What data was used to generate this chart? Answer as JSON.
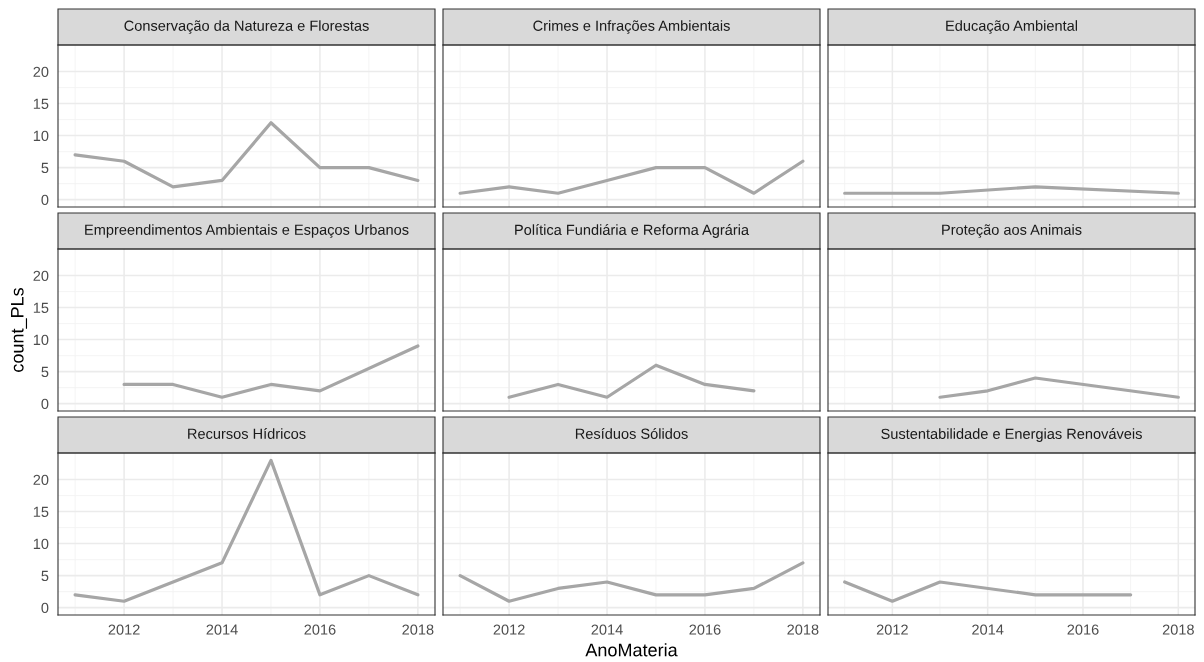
{
  "chart_data": [
    {
      "type": "line",
      "title": "Conservação da Natureza e Florestas",
      "x": [
        2011,
        2012,
        2013,
        2014,
        2015,
        2016,
        2017,
        2018
      ],
      "series": [
        {
          "color": "#a6a6a6",
          "values": [
            7,
            6,
            2,
            3,
            12,
            5,
            5,
            3
          ]
        }
      ],
      "xlim": [
        2010.65,
        2018.35
      ],
      "ylim": [
        -1.15,
        24.15
      ],
      "xticks": [
        2012,
        2014,
        2016,
        2018
      ],
      "yticks": [
        0,
        5,
        10,
        15,
        20
      ],
      "grid": true,
      "tick_labels": "y"
    },
    {
      "type": "line",
      "title": "Crimes e Infrações Ambientais",
      "x": [
        2011,
        2012,
        2013,
        2014,
        2015,
        2016,
        2017,
        2018
      ],
      "series": [
        {
          "color": "#a6a6a6",
          "values": [
            1,
            2,
            1,
            3,
            5,
            5,
            1,
            6
          ]
        }
      ],
      "xlim": [
        2010.65,
        2018.35
      ],
      "ylim": [
        -1.15,
        24.15
      ],
      "xticks": [
        2012,
        2014,
        2016,
        2018
      ],
      "yticks": [
        0,
        5,
        10,
        15,
        20
      ],
      "grid": true,
      "tick_labels": false
    },
    {
      "type": "line",
      "title": "Educação Ambiental",
      "x": [
        2011,
        2013,
        2015,
        2018
      ],
      "series": [
        {
          "color": "#a6a6a6",
          "values": [
            1,
            1,
            2,
            1
          ]
        }
      ],
      "xlim": [
        2010.65,
        2018.35
      ],
      "ylim": [
        -1.15,
        24.15
      ],
      "xticks": [
        2012,
        2014,
        2016,
        2018
      ],
      "yticks": [
        0,
        5,
        10,
        15,
        20
      ],
      "grid": true,
      "tick_labels": false
    },
    {
      "type": "line",
      "title": "Empreendimentos Ambientais e Espaços Urbanos",
      "x": [
        2012,
        2013,
        2014,
        2015,
        2016,
        2018
      ],
      "series": [
        {
          "color": "#a6a6a6",
          "values": [
            3,
            3,
            1,
            3,
            2,
            9
          ]
        }
      ],
      "xlim": [
        2010.65,
        2018.35
      ],
      "ylim": [
        -1.15,
        24.15
      ],
      "xticks": [
        2012,
        2014,
        2016,
        2018
      ],
      "yticks": [
        0,
        5,
        10,
        15,
        20
      ],
      "grid": true,
      "tick_labels": "y",
      "ylabel": "count_PLs"
    },
    {
      "type": "line",
      "title": "Política Fundiária e Reforma Agrária",
      "x": [
        2012,
        2013,
        2014,
        2015,
        2016,
        2017
      ],
      "series": [
        {
          "color": "#a6a6a6",
          "values": [
            1,
            3,
            1,
            6,
            3,
            2
          ]
        }
      ],
      "xlim": [
        2010.65,
        2018.35
      ],
      "ylim": [
        -1.15,
        24.15
      ],
      "xticks": [
        2012,
        2014,
        2016,
        2018
      ],
      "yticks": [
        0,
        5,
        10,
        15,
        20
      ],
      "grid": true,
      "tick_labels": false
    },
    {
      "type": "line",
      "title": "Proteção aos Animais",
      "x": [
        2013,
        2014,
        2015,
        2018
      ],
      "series": [
        {
          "color": "#a6a6a6",
          "values": [
            1,
            2,
            4,
            1
          ]
        }
      ],
      "xlim": [
        2010.65,
        2018.35
      ],
      "ylim": [
        -1.15,
        24.15
      ],
      "xticks": [
        2012,
        2014,
        2016,
        2018
      ],
      "yticks": [
        0,
        5,
        10,
        15,
        20
      ],
      "grid": true,
      "tick_labels": false
    },
    {
      "type": "line",
      "title": "Recursos Hídricos",
      "x": [
        2011,
        2012,
        2014,
        2015,
        2016,
        2017,
        2018
      ],
      "series": [
        {
          "color": "#a6a6a6",
          "values": [
            2,
            1,
            7,
            23,
            2,
            5,
            2
          ]
        }
      ],
      "xlim": [
        2010.65,
        2018.35
      ],
      "ylim": [
        -1.15,
        24.15
      ],
      "xticks": [
        2012,
        2014,
        2016,
        2018
      ],
      "yticks": [
        0,
        5,
        10,
        15,
        20
      ],
      "grid": true
    },
    {
      "type": "line",
      "title": "Resíduos Sólidos",
      "x": [
        2011,
        2012,
        2013,
        2014,
        2015,
        2016,
        2017,
        2018
      ],
      "series": [
        {
          "color": "#a6a6a6",
          "values": [
            5,
            1,
            3,
            4,
            2,
            2,
            3,
            7
          ]
        }
      ],
      "xlim": [
        2010.65,
        2018.35
      ],
      "ylim": [
        -1.15,
        24.15
      ],
      "xticks": [
        2012,
        2014,
        2016,
        2018
      ],
      "yticks": [
        0,
        5,
        10,
        15,
        20
      ],
      "grid": true,
      "tick_labels": "x",
      "xlabel": "AnoMateria"
    },
    {
      "type": "line",
      "title": "Sustentabilidade e Energias Renováveis",
      "x": [
        2011,
        2012,
        2013,
        2015,
        2016,
        2017
      ],
      "series": [
        {
          "color": "#a6a6a6",
          "values": [
            4,
            1,
            4,
            2,
            2,
            2
          ]
        }
      ],
      "xlim": [
        2010.65,
        2018.35
      ],
      "ylim": [
        -1.15,
        24.15
      ],
      "xticks": [
        2012,
        2014,
        2016,
        2018
      ],
      "yticks": [
        0,
        5,
        10,
        15,
        20
      ],
      "grid": true,
      "tick_labels": "x"
    }
  ]
}
